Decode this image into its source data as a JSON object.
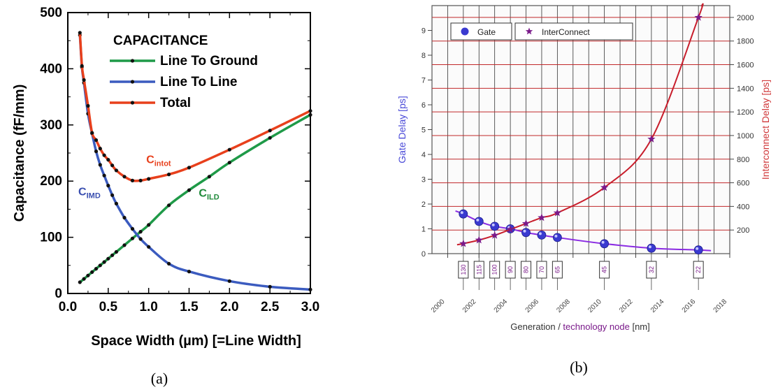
{
  "chart_data": [
    {
      "panel_label": "(a)",
      "type": "line",
      "xlabel": "Space Width (µm) [=Line Width]",
      "ylabel": "Capacitance (fF/mm)",
      "xlim": [
        0.0,
        3.0
      ],
      "ylim": [
        0,
        500
      ],
      "x_ticks": [
        "0.0",
        "0.5",
        "1.0",
        "1.5",
        "2.0",
        "2.5",
        "3.0"
      ],
      "y_ticks": [
        "0",
        "100",
        "200",
        "300",
        "400",
        "500"
      ],
      "grid": false,
      "legend": {
        "title": "CAPACITANCE",
        "placement": "top-right",
        "entries": [
          "Line To Ground",
          "Line To Line",
          "Total"
        ]
      },
      "annotations": [
        {
          "main": "C",
          "sub": "intot",
          "color": "#e8401c",
          "at": [
            0.97,
            232
          ]
        },
        {
          "main": "C",
          "sub": "IMD",
          "color": "#3a4fb0",
          "at": [
            0.13,
            175
          ]
        },
        {
          "main": "C",
          "sub": "ILD",
          "color": "#1f8a3a",
          "at": [
            1.62,
            172
          ]
        }
      ],
      "series": [
        {
          "name": "Line To Ground",
          "color": "#1f9a48",
          "x": [
            0.15,
            0.2,
            0.25,
            0.3,
            0.35,
            0.4,
            0.45,
            0.5,
            0.55,
            0.6,
            0.7,
            0.8,
            0.9,
            1.0,
            1.25,
            1.5,
            1.75,
            2.0,
            2.5,
            3.0
          ],
          "values": [
            20,
            26,
            32,
            38,
            44,
            50,
            56,
            62,
            68,
            74,
            86,
            98,
            110,
            122,
            157,
            184,
            208,
            233,
            277,
            318
          ]
        },
        {
          "name": "Line To Line",
          "color": "#3b5bbf",
          "x": [
            0.15,
            0.175,
            0.2,
            0.25,
            0.3,
            0.35,
            0.4,
            0.45,
            0.5,
            0.55,
            0.6,
            0.7,
            0.8,
            0.9,
            1.0,
            1.25,
            1.5,
            2.0,
            2.5,
            3.0
          ],
          "values": [
            460,
            403,
            375,
            320,
            285,
            253,
            229,
            210,
            192,
            175,
            160,
            135,
            115,
            97,
            83,
            53,
            39,
            22,
            12,
            7
          ]
        },
        {
          "name": "Total",
          "color": "#e8401c",
          "x": [
            0.15,
            0.175,
            0.2,
            0.25,
            0.3,
            0.35,
            0.4,
            0.45,
            0.5,
            0.55,
            0.6,
            0.7,
            0.8,
            0.9,
            1.0,
            1.25,
            1.5,
            2.0,
            2.5,
            3.0
          ],
          "values": [
            464,
            405,
            380,
            334,
            286,
            273,
            258,
            246,
            238,
            228,
            219,
            208,
            201,
            201,
            204,
            212,
            224,
            256,
            290,
            325
          ]
        }
      ]
    },
    {
      "panel_label": "(b)",
      "type": "line",
      "xlabel_parts": [
        "Generation",
        " / ",
        "technology node",
        " [nm]"
      ],
      "ylabel_left": "Gate Delay  [ps]",
      "ylabel_right": "Interconnect Delay  [ps]",
      "xlim": [
        1999,
        2018
      ],
      "ylim_left": [
        0,
        10
      ],
      "ylim_right": [
        0,
        2100
      ],
      "x_ticks": [
        "2000",
        "2002",
        "2004",
        "2006",
        "2008",
        "2010",
        "2012",
        "2014",
        "2016",
        "2018"
      ],
      "y_ticks_left": [
        "0",
        "1",
        "2",
        "3",
        "4",
        "5",
        "6",
        "7",
        "8",
        "9"
      ],
      "y_ticks_right": [
        "200",
        "400",
        "600",
        "800",
        "1000",
        "1200",
        "1400",
        "1600",
        "1800",
        "2000"
      ],
      "grid": true,
      "legend": {
        "placement": "top-left",
        "entries": [
          "Gate",
          "InterConnect"
        ]
      },
      "nodes": [
        {
          "year": 2001,
          "label": "130"
        },
        {
          "year": 2002,
          "label": "115"
        },
        {
          "year": 2003,
          "label": "100"
        },
        {
          "year": 2004,
          "label": "90"
        },
        {
          "year": 2005,
          "label": "80"
        },
        {
          "year": 2006,
          "label": "70"
        },
        {
          "year": 2007,
          "label": "65"
        },
        {
          "year": 2010,
          "label": "45"
        },
        {
          "year": 2013,
          "label": "32"
        },
        {
          "year": 2016,
          "label": "22"
        }
      ],
      "series": [
        {
          "name": "Gate",
          "axis": "left",
          "color": "#4a3fd0",
          "x": [
            2001,
            2002,
            2003,
            2004,
            2005,
            2006,
            2007,
            2010,
            2013,
            2016
          ],
          "values": [
            1.6,
            1.3,
            1.1,
            1.0,
            0.85,
            0.75,
            0.65,
            0.4,
            0.22,
            0.15
          ]
        },
        {
          "name": "InterConnect",
          "axis": "right",
          "color": "#7a1a8a",
          "x": [
            2001,
            2002,
            2003,
            2004,
            2005,
            2006,
            2007,
            2010,
            2013,
            2016
          ],
          "values": [
            85,
            115,
            155,
            205,
            255,
            305,
            345,
            560,
            970,
            2000
          ]
        }
      ]
    }
  ]
}
